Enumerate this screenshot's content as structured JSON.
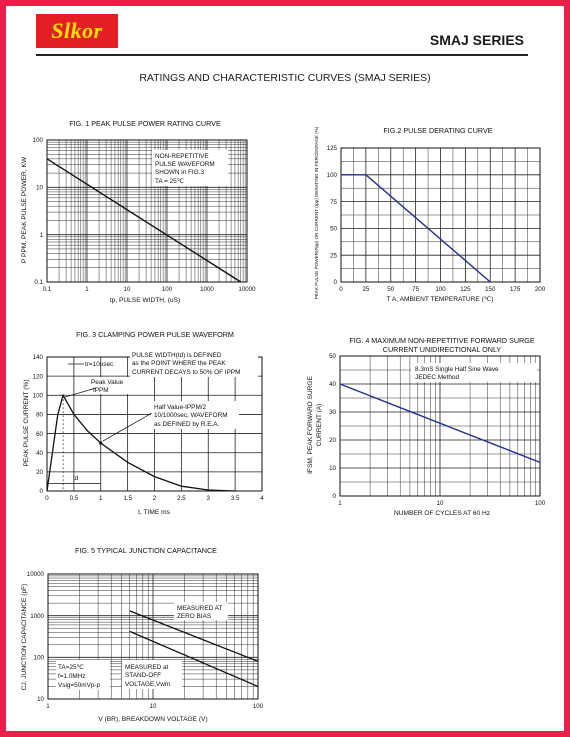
{
  "header": {
    "logo_text": "Slkor",
    "series_label": "SMAJ SERIES",
    "title": "RATINGS AND CHARACTERISTIC CURVES (SMAJ SERIES)"
  },
  "colors": {
    "frame": "#e8204a",
    "logo_bg": "#e31e25",
    "logo_text": "#ffe600",
    "curve_blue": "#1f2f9a",
    "curve_black": "#111111"
  },
  "chart_data": [
    {
      "id": "fig1",
      "type": "line",
      "title": "FIG. 1 PEAK PULSE POWER RATING CURVE",
      "xlabel": "tp, PULSE WIDTH, (uS)",
      "ylabel": "P PPM, PEAK PULSE POWER, KW",
      "xscale": "log",
      "yscale": "log",
      "xlim": [
        0.1,
        10000
      ],
      "ylim": [
        0.1,
        100
      ],
      "xticks": [
        "0.1",
        "1",
        "10",
        "100",
        "1000",
        "10000"
      ],
      "yticks": [
        "0.1",
        "1",
        "10",
        "100"
      ],
      "grid": true,
      "annotation": [
        "NON-REPETITIVE",
        "PULSE WAVEFORM",
        "SHOWN in FIG.3",
        "TA = 25℃"
      ],
      "series": [
        {
          "x": [
            0.1,
            7000
          ],
          "y": [
            40,
            0.1
          ]
        }
      ]
    },
    {
      "id": "fig2",
      "type": "line",
      "title": "FIG.2 PULSE DERATING CURVE",
      "xlabel": "T A, AMBIENT TEMPERATURE (℃)",
      "ylabel": "PEAK PULSE POWER(Ppp) OR CURRENT (Ipp) DERATING IN PERCENTAGE (%)",
      "xlim": [
        0,
        200
      ],
      "ylim": [
        0,
        125
      ],
      "xticks": [
        "0",
        "25",
        "50",
        "75",
        "100",
        "125",
        "150",
        "175",
        "200"
      ],
      "yticks": [
        "0",
        "25",
        "50",
        "75",
        "100",
        "125"
      ],
      "grid": true,
      "series": [
        {
          "x": [
            0,
            25,
            150
          ],
          "y": [
            100,
            100,
            0
          ]
        }
      ]
    },
    {
      "id": "fig3",
      "type": "line",
      "title": "FIG. 3 CLAMPING POWER PULSE WAVEFORM",
      "xlabel": "t, TIME ms",
      "ylabel": "PEAK PULSE CURRENT (%)",
      "xlim": [
        0,
        4
      ],
      "ylim": [
        0,
        140
      ],
      "xticks": [
        "0",
        "0.5",
        "1",
        "1.5",
        "2",
        "2.5",
        "3",
        "3.5",
        "4"
      ],
      "yticks": [
        "0",
        "20",
        "40",
        "60",
        "80",
        "100",
        "120",
        "140"
      ],
      "grid": true,
      "annotations": {
        "tr": "tr=10usec",
        "pulse_def": [
          "PULSE WIDTH(td) is DEFINED",
          "as the POINT WHERE the PEAK",
          "CURRENT DECAYS to 50% OF IPPM"
        ],
        "peak": [
          "Peak Value",
          "IPPM"
        ],
        "half": [
          "Half Value-IPPM/2",
          "10/1000sec, WAVEFORM",
          "as DEFINED by R.E.A."
        ],
        "td": "td"
      },
      "series": [
        {
          "x": [
            0,
            0.1,
            0.2,
            0.3,
            0.5,
            0.75,
            1.0,
            1.5,
            2.0,
            2.5,
            3.0,
            3.5
          ],
          "y": [
            0,
            40,
            80,
            100,
            80,
            63,
            50,
            30,
            15,
            5,
            1,
            0
          ]
        }
      ]
    },
    {
      "id": "fig4",
      "type": "line",
      "title": [
        "FIG. 4 MAXIMUM  NON-REPETITIVE FORWARD SURGE",
        "CURRENT UNIDIRECTIONAL ONLY"
      ],
      "xlabel": "NUMBER OF CYCLES AT 60 Hz",
      "ylabel": [
        "IFSM, PEAK FORWARD SURGE",
        "CURRENT (A)"
      ],
      "xscale": "log",
      "xlim": [
        1,
        100
      ],
      "ylim": [
        0,
        50
      ],
      "xticks": [
        "1",
        "10",
        "100"
      ],
      "yticks": [
        "0",
        "10",
        "20",
        "30",
        "40",
        "50"
      ],
      "grid": true,
      "annotation": [
        "8.3mS Single Half Sine Wave",
        "JEDEC Method"
      ],
      "series": [
        {
          "x": [
            1,
            100
          ],
          "y": [
            40,
            12
          ]
        }
      ]
    },
    {
      "id": "fig5",
      "type": "line",
      "title": "FIG. 5 TYPICAL JUNCTION CAPACITANCE",
      "xlabel": "V (BR), BREAKDOWN VOLTAGE (V)",
      "ylabel": "CJ, JUNCTION CAPACITANCE (pF)",
      "xscale": "log",
      "yscale": "log",
      "xlim": [
        1,
        100
      ],
      "ylim": [
        10,
        10000
      ],
      "xticks": [
        "1",
        "10",
        "100"
      ],
      "yticks": [
        "10",
        "100",
        "1000",
        "10000"
      ],
      "grid": true,
      "annotations": {
        "zero_bias": [
          "MEASURED AT",
          "ZERO BIAS"
        ],
        "stand_off": [
          "MEASURED at",
          "STAND-OFF",
          "VOLTAGE,Vwm"
        ],
        "conditions": [
          "TA=25℃",
          "f=1.0MHz",
          "Vsig=50mVp-p"
        ]
      },
      "series": [
        {
          "x": [
            6,
            100
          ],
          "y": [
            1300,
            80
          ]
        },
        {
          "x": [
            6,
            100
          ],
          "y": [
            420,
            20
          ]
        }
      ]
    }
  ]
}
